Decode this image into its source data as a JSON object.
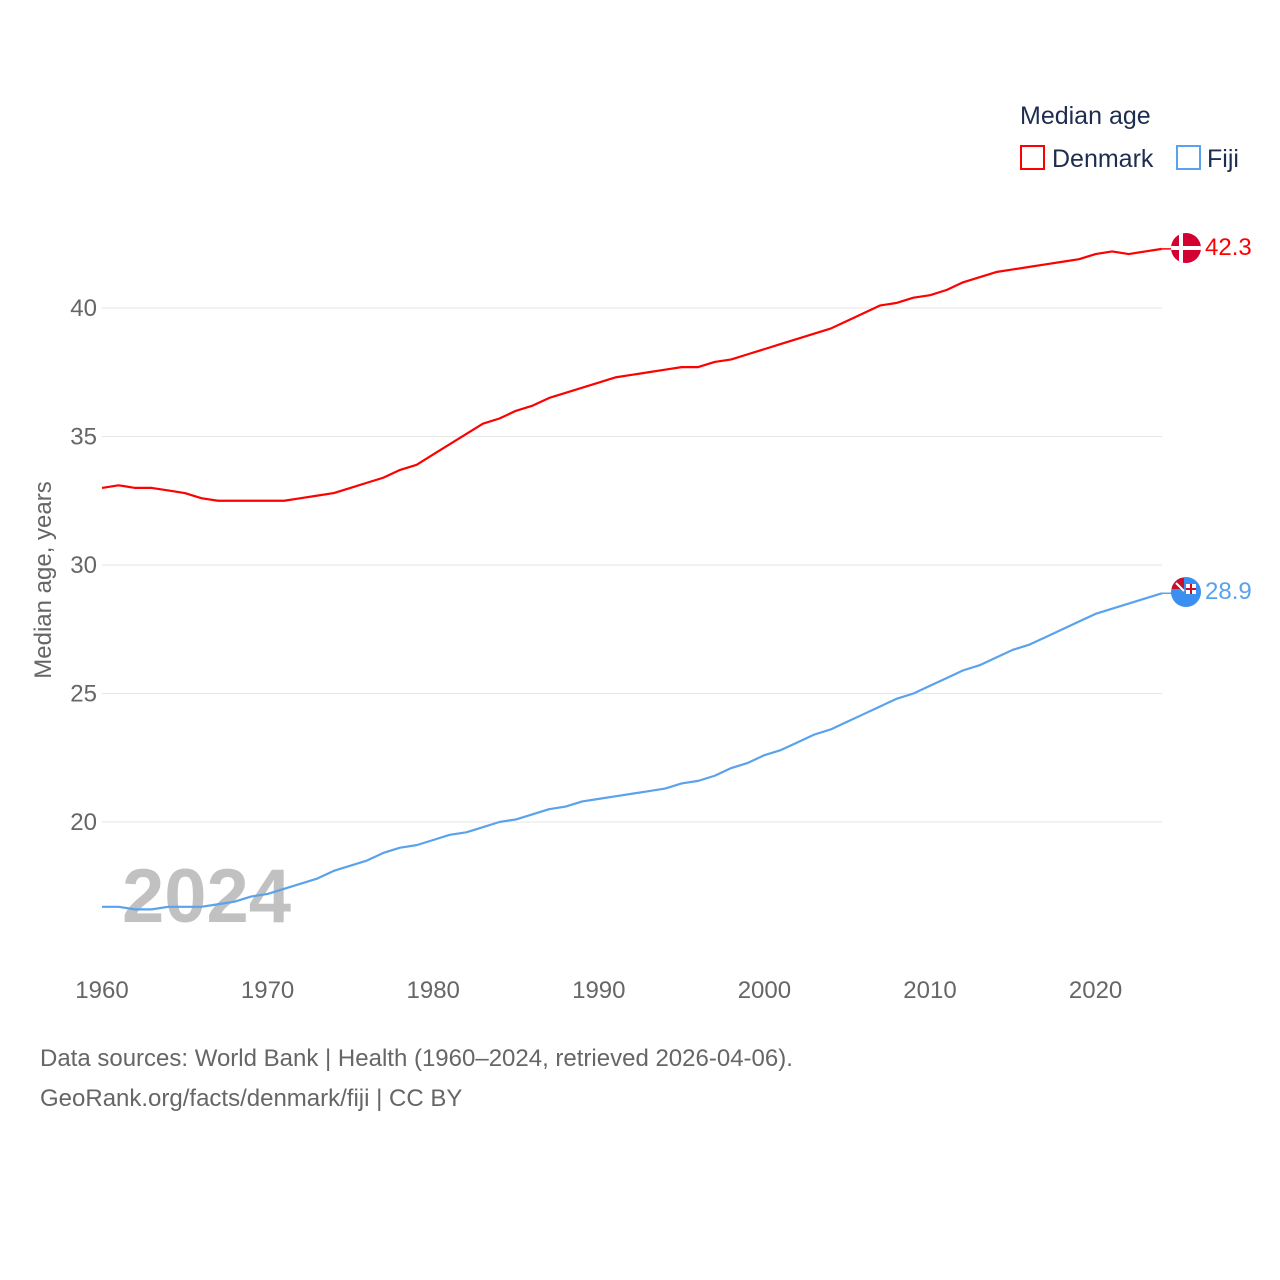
{
  "chart_data": {
    "type": "line",
    "title": "Median age",
    "xlabel": "",
    "ylabel": "Median age, years",
    "xlim": [
      1960,
      2024
    ],
    "ylim": [
      15,
      44
    ],
    "grid": true,
    "legend_placement": "top-right",
    "x_ticks": [
      "1960",
      "1970",
      "1980",
      "1990",
      "2000",
      "2010",
      "2020"
    ],
    "y_ticks": [
      "20",
      "25",
      "30",
      "35",
      "40"
    ],
    "year_watermark": "2024",
    "x": [
      1960,
      1961,
      1962,
      1963,
      1964,
      1965,
      1966,
      1967,
      1968,
      1969,
      1970,
      1971,
      1972,
      1973,
      1974,
      1975,
      1976,
      1977,
      1978,
      1979,
      1980,
      1981,
      1982,
      1983,
      1984,
      1985,
      1986,
      1987,
      1988,
      1989,
      1990,
      1991,
      1992,
      1993,
      1994,
      1995,
      1996,
      1997,
      1998,
      1999,
      2000,
      2001,
      2002,
      2003,
      2004,
      2005,
      2006,
      2007,
      2008,
      2009,
      2010,
      2011,
      2012,
      2013,
      2014,
      2015,
      2016,
      2017,
      2018,
      2019,
      2020,
      2021,
      2022,
      2023,
      2024
    ],
    "series": [
      {
        "name": "Denmark",
        "color": "#ff0000",
        "end_label": "42.3",
        "values": [
          33.0,
          33.1,
          33.0,
          33.0,
          32.9,
          32.8,
          32.6,
          32.5,
          32.5,
          32.5,
          32.5,
          32.5,
          32.6,
          32.7,
          32.8,
          33.0,
          33.2,
          33.4,
          33.7,
          33.9,
          34.3,
          34.7,
          35.1,
          35.5,
          35.7,
          36.0,
          36.2,
          36.5,
          36.7,
          36.9,
          37.1,
          37.3,
          37.4,
          37.5,
          37.6,
          37.7,
          37.7,
          37.9,
          38.0,
          38.2,
          38.4,
          38.6,
          38.8,
          39.0,
          39.2,
          39.5,
          39.8,
          40.1,
          40.2,
          40.4,
          40.5,
          40.7,
          41.0,
          41.2,
          41.4,
          41.5,
          41.6,
          41.7,
          41.8,
          41.9,
          42.1,
          42.2,
          42.1,
          42.2,
          42.3
        ]
      },
      {
        "name": "Fiji",
        "color": "#5aa2ec",
        "end_label": "28.9",
        "values": [
          16.7,
          16.7,
          16.6,
          16.6,
          16.7,
          16.7,
          16.7,
          16.8,
          16.9,
          17.1,
          17.2,
          17.4,
          17.6,
          17.8,
          18.1,
          18.3,
          18.5,
          18.8,
          19.0,
          19.1,
          19.3,
          19.5,
          19.6,
          19.8,
          20.0,
          20.1,
          20.3,
          20.5,
          20.6,
          20.8,
          20.9,
          21.0,
          21.1,
          21.2,
          21.3,
          21.5,
          21.6,
          21.8,
          22.1,
          22.3,
          22.6,
          22.8,
          23.1,
          23.4,
          23.6,
          23.9,
          24.2,
          24.5,
          24.8,
          25.0,
          25.3,
          25.6,
          25.9,
          26.1,
          26.4,
          26.7,
          26.9,
          27.2,
          27.5,
          27.8,
          28.1,
          28.3,
          28.5,
          28.7,
          28.9
        ]
      }
    ]
  },
  "footer": {
    "line1": "Data sources: World Bank | Health (1960–2024, retrieved 2026-04-06).",
    "line2": "GeoRank.org/facts/denmark/fiji | CC BY"
  }
}
